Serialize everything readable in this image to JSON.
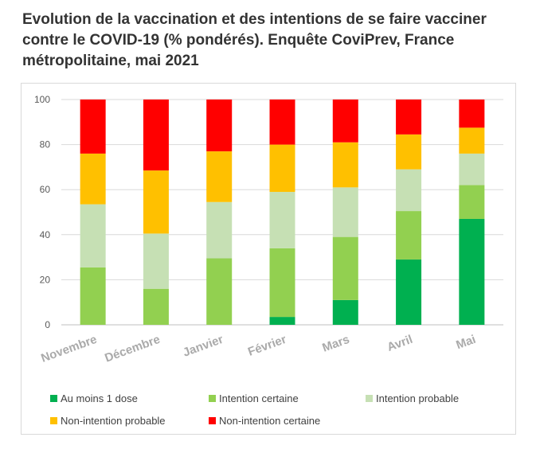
{
  "title": "Evolution de la vaccination et des intentions de se faire vacciner contre le COVID-19 (% pondérés). Enquête CoviPrev, France métropolitaine, mai 2021",
  "chart_data": {
    "type": "bar",
    "stacked": true,
    "title": "Evolution de la vaccination et des intentions de se faire vacciner contre le COVID-19 (% pondérés). Enquête CoviPrev, France métropolitaine, mai 2021",
    "categories": [
      "Novembre",
      "Décembre",
      "Janvier",
      "Février",
      "Mars",
      "Avril",
      "Mai"
    ],
    "ylim": [
      0,
      100
    ],
    "yticks": [
      0,
      20,
      40,
      60,
      80,
      100
    ],
    "grid": true,
    "legend_position": "bottom",
    "series": [
      {
        "name": "Au moins 1 dose",
        "color": "#00b050",
        "values": [
          0,
          0,
          0,
          3.5,
          11,
          29,
          47
        ]
      },
      {
        "name": "Intention certaine",
        "color": "#92d050",
        "values": [
          25.5,
          16,
          29.5,
          30.5,
          28,
          21.5,
          15
        ]
      },
      {
        "name": "Intention probable",
        "color": "#c6e0b4",
        "values": [
          28,
          24.5,
          25,
          25,
          22,
          18.5,
          14
        ]
      },
      {
        "name": "Non-intention probable",
        "color": "#ffc000",
        "values": [
          22.5,
          28,
          22.5,
          21,
          20,
          15.5,
          11.5
        ]
      },
      {
        "name": "Non-intention certaine",
        "color": "#ff0000",
        "values": [
          24,
          31.5,
          23,
          20,
          19,
          15.5,
          12.5
        ]
      }
    ]
  }
}
